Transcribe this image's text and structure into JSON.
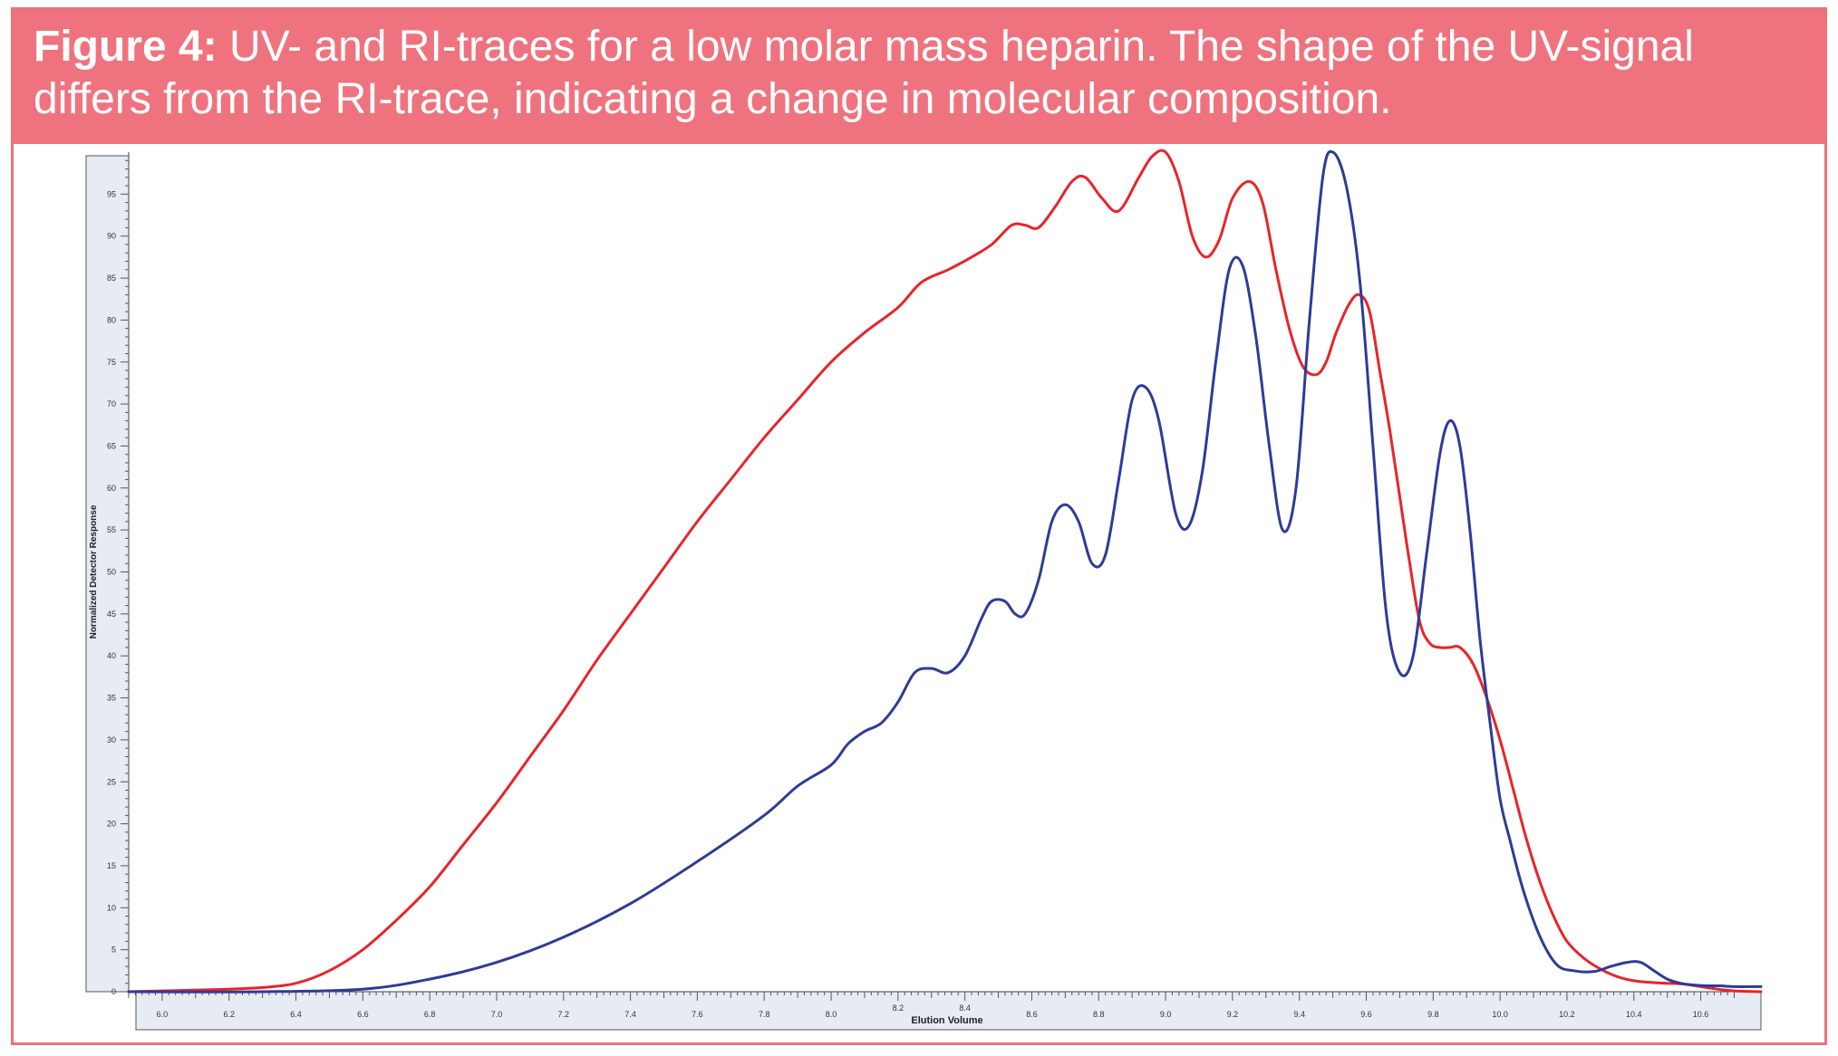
{
  "caption": {
    "label": "Figure 4:",
    "text": " UV- and RI-traces for a low molar mass heparin. The shape of the UV-signal differs from the RI-trace, indicating a change in molecular composition."
  },
  "colors": {
    "caption_band": "#ef737e",
    "frame": "#ef707c",
    "ri_trace": "#e8242a",
    "uv_trace": "#2e3b98",
    "axis_panel": "#e6ebf4"
  },
  "chart_data": {
    "type": "line",
    "title": "",
    "xlabel": "Elution Volume",
    "ylabel": "Normalized Detector Response",
    "xlim": [
      5.9,
      10.78
    ],
    "ylim": [
      0,
      100
    ],
    "grid": false,
    "x_ticks": [
      "6.0",
      "6.2",
      "6.4",
      "6.6",
      "6.8",
      "7.0",
      "7.2",
      "7.4",
      "7.6",
      "7.8",
      "8.0",
      "8.2",
      "8.4",
      "8.6",
      "8.8",
      "9.0",
      "9.2",
      "9.4",
      "9.6",
      "9.8",
      "10.0",
      "10.2",
      "10.4",
      "10.6"
    ],
    "y_ticks": [
      "0",
      "5",
      "10",
      "15",
      "20",
      "25",
      "30",
      "35",
      "40",
      "45",
      "50",
      "55",
      "60",
      "65",
      "70",
      "75",
      "80",
      "85",
      "90",
      "95"
    ],
    "series": [
      {
        "color": "#e8242a",
        "x": [
          5.9,
          6.2,
          6.3,
          6.4,
          6.5,
          6.6,
          6.7,
          6.8,
          6.9,
          7.0,
          7.1,
          7.2,
          7.3,
          7.4,
          7.5,
          7.6,
          7.7,
          7.8,
          7.9,
          8.0,
          8.1,
          8.2,
          8.27,
          8.35,
          8.42,
          8.48,
          8.54,
          8.58,
          8.62,
          8.67,
          8.72,
          8.76,
          8.81,
          8.86,
          8.92,
          8.96,
          9.0,
          9.04,
          9.08,
          9.12,
          9.16,
          9.2,
          9.25,
          9.29,
          9.33,
          9.37,
          9.41,
          9.45,
          9.48,
          9.51,
          9.55,
          9.58,
          9.61,
          9.64,
          9.67,
          9.7,
          9.73,
          9.76,
          9.79,
          9.82,
          9.85,
          9.88,
          9.92,
          9.96,
          10.0,
          10.04,
          10.08,
          10.12,
          10.16,
          10.2,
          10.25,
          10.3,
          10.35,
          10.4,
          10.45,
          10.5,
          10.55,
          10.6,
          10.65,
          10.7,
          10.78
        ],
        "y": [
          0,
          0.3,
          0.5,
          1.0,
          2.5,
          5.0,
          8.5,
          12.5,
          17.5,
          22.5,
          28.0,
          33.5,
          39.5,
          45.0,
          50.5,
          56.0,
          61.0,
          66.0,
          70.5,
          75.0,
          78.5,
          81.5,
          84.5,
          86.0,
          87.5,
          89.0,
          91.3,
          91.3,
          91.0,
          93.5,
          96.5,
          97.0,
          94.5,
          93.0,
          97.0,
          99.5,
          100,
          96.5,
          90.0,
          87.5,
          89.5,
          94.5,
          96.5,
          94.0,
          86.0,
          79.0,
          74.5,
          73.5,
          75.0,
          78.5,
          82.0,
          83.0,
          81.0,
          74.0,
          67.0,
          59.0,
          51.0,
          44.0,
          41.5,
          41.0,
          41.0,
          41.0,
          39.0,
          35.0,
          30.0,
          24.0,
          18.0,
          13.0,
          9.0,
          6.0,
          4.0,
          2.7,
          1.8,
          1.3,
          1.1,
          1.0,
          0.9,
          0.6,
          0.3,
          0.1,
          0
        ]
      },
      {
        "color": "#2e3b98",
        "x": [
          5.9,
          6.3,
          6.6,
          6.8,
          7.0,
          7.2,
          7.4,
          7.6,
          7.8,
          7.9,
          8.0,
          8.05,
          8.1,
          8.15,
          8.2,
          8.25,
          8.3,
          8.35,
          8.4,
          8.45,
          8.48,
          8.52,
          8.55,
          8.58,
          8.62,
          8.66,
          8.7,
          8.74,
          8.78,
          8.82,
          8.86,
          8.9,
          8.94,
          8.98,
          9.03,
          9.07,
          9.11,
          9.15,
          9.19,
          9.23,
          9.27,
          9.31,
          9.35,
          9.39,
          9.43,
          9.47,
          9.5,
          9.54,
          9.58,
          9.62,
          9.66,
          9.7,
          9.74,
          9.78,
          9.82,
          9.85,
          9.88,
          9.91,
          9.94,
          9.97,
          10.0,
          10.03,
          10.07,
          10.12,
          10.17,
          10.22,
          10.28,
          10.33,
          10.38,
          10.42,
          10.46,
          10.5,
          10.54,
          10.58,
          10.62,
          10.66,
          10.7,
          10.78
        ],
        "y": [
          0,
          0,
          0.3,
          1.5,
          3.5,
          6.5,
          10.5,
          15.5,
          21.0,
          24.5,
          27.0,
          29.5,
          31.0,
          32.0,
          34.5,
          38.0,
          38.5,
          38.0,
          40.0,
          44.5,
          46.5,
          46.5,
          45.0,
          45.0,
          49.0,
          56.0,
          58.0,
          56.0,
          51.0,
          52.0,
          61.0,
          70.5,
          72.0,
          68.0,
          57.0,
          55.5,
          62.0,
          75.0,
          86.0,
          86.5,
          78.0,
          65.0,
          55.0,
          60.0,
          80.0,
          97.0,
          100,
          96.0,
          85.0,
          65.0,
          45.0,
          38.0,
          40.0,
          52.0,
          64.0,
          68.0,
          65.0,
          55.0,
          42.0,
          32.0,
          23.0,
          18.0,
          12.0,
          6.5,
          3.2,
          2.5,
          2.4,
          3.0,
          3.5,
          3.5,
          2.5,
          1.5,
          1.0,
          0.8,
          0.7,
          0.7,
          0.6,
          0.6
        ]
      }
    ]
  }
}
